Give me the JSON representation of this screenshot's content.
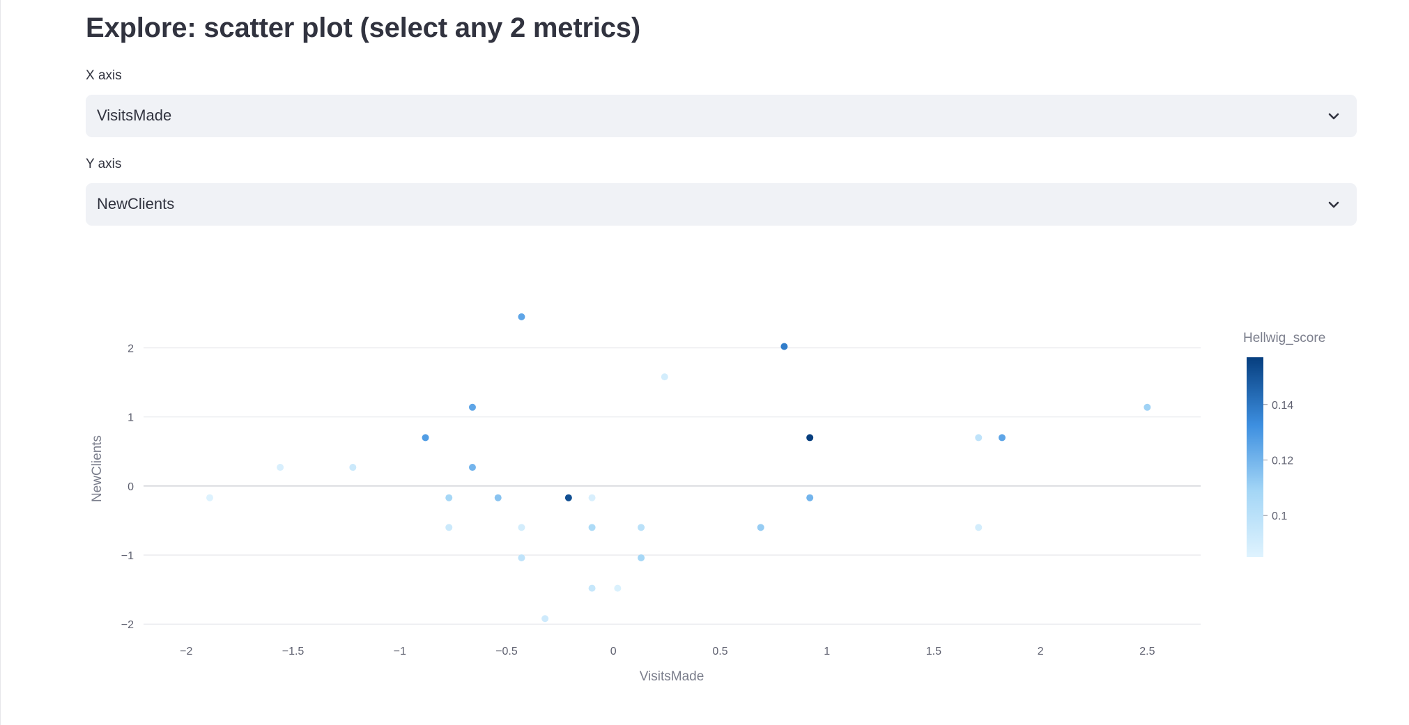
{
  "header": {
    "title": "Explore: scatter plot (select any 2 metrics)"
  },
  "controls": {
    "x_axis": {
      "label": "X axis",
      "value": "VisitsMade"
    },
    "y_axis": {
      "label": "Y axis",
      "value": "NewClients"
    }
  },
  "icons": {
    "select_chevron": "chevron-down-icon"
  },
  "colors": {
    "accent_low": "#d5effd",
    "accent_mid": "#5aa8ec",
    "accent_high": "#063e7e",
    "grid": "#e6e7eb"
  },
  "chart_data": {
    "type": "scatter",
    "xlabel": "VisitsMade",
    "ylabel": "NewClients",
    "xlim": [
      -2.2,
      2.75
    ],
    "ylim": [
      -2.2,
      2.6
    ],
    "x_ticks": [
      -2,
      -1.5,
      -1,
      -0.5,
      0,
      0.5,
      1,
      1.5,
      2,
      2.5
    ],
    "x_tick_labels": [
      "−2",
      "−1.5",
      "−1",
      "−0.5",
      "0",
      "0.5",
      "1",
      "1.5",
      "2",
      "2.5"
    ],
    "y_ticks": [
      -2,
      -1,
      0,
      1,
      2
    ],
    "y_tick_labels": [
      "−2",
      "−1",
      "0",
      "1",
      "2"
    ],
    "grid": true,
    "colorbar": {
      "title": "Hellwig_score",
      "range": [
        0.085,
        0.157
      ],
      "ticks": [
        0.1,
        0.12,
        0.14
      ],
      "tick_labels": [
        "0.1",
        "0.12",
        "0.14"
      ],
      "placement": "right"
    },
    "points": [
      {
        "x": -1.89,
        "y": -0.17,
        "c": 0.086
      },
      {
        "x": -1.56,
        "y": 0.27,
        "c": 0.088
      },
      {
        "x": -1.22,
        "y": 0.27,
        "c": 0.093
      },
      {
        "x": -0.88,
        "y": 0.7,
        "c": 0.128
      },
      {
        "x": -0.77,
        "y": -0.17,
        "c": 0.108
      },
      {
        "x": -0.77,
        "y": -0.6,
        "c": 0.093
      },
      {
        "x": -0.66,
        "y": 1.14,
        "c": 0.125
      },
      {
        "x": -0.66,
        "y": 0.27,
        "c": 0.12
      },
      {
        "x": -0.54,
        "y": -0.17,
        "c": 0.115
      },
      {
        "x": -0.43,
        "y": 2.45,
        "c": 0.125
      },
      {
        "x": -0.43,
        "y": -0.6,
        "c": 0.09
      },
      {
        "x": -0.43,
        "y": -1.04,
        "c": 0.098
      },
      {
        "x": -0.32,
        "y": -1.92,
        "c": 0.092
      },
      {
        "x": -0.21,
        "y": -0.17,
        "c": 0.152
      },
      {
        "x": -0.1,
        "y": -0.17,
        "c": 0.088
      },
      {
        "x": -0.1,
        "y": -0.6,
        "c": 0.105
      },
      {
        "x": -0.1,
        "y": -1.48,
        "c": 0.095
      },
      {
        "x": 0.02,
        "y": -1.48,
        "c": 0.087
      },
      {
        "x": 0.13,
        "y": -0.6,
        "c": 0.1
      },
      {
        "x": 0.13,
        "y": -1.04,
        "c": 0.108
      },
      {
        "x": 0.24,
        "y": 1.58,
        "c": 0.09
      },
      {
        "x": 0.69,
        "y": -0.6,
        "c": 0.112
      },
      {
        "x": 0.8,
        "y": 2.02,
        "c": 0.138
      },
      {
        "x": 0.92,
        "y": 0.7,
        "c": 0.157
      },
      {
        "x": 0.92,
        "y": -0.17,
        "c": 0.12
      },
      {
        "x": 1.71,
        "y": 0.7,
        "c": 0.098
      },
      {
        "x": 1.71,
        "y": -0.6,
        "c": 0.09
      },
      {
        "x": 1.82,
        "y": 0.7,
        "c": 0.125
      },
      {
        "x": 2.5,
        "y": 1.14,
        "c": 0.11
      }
    ]
  }
}
